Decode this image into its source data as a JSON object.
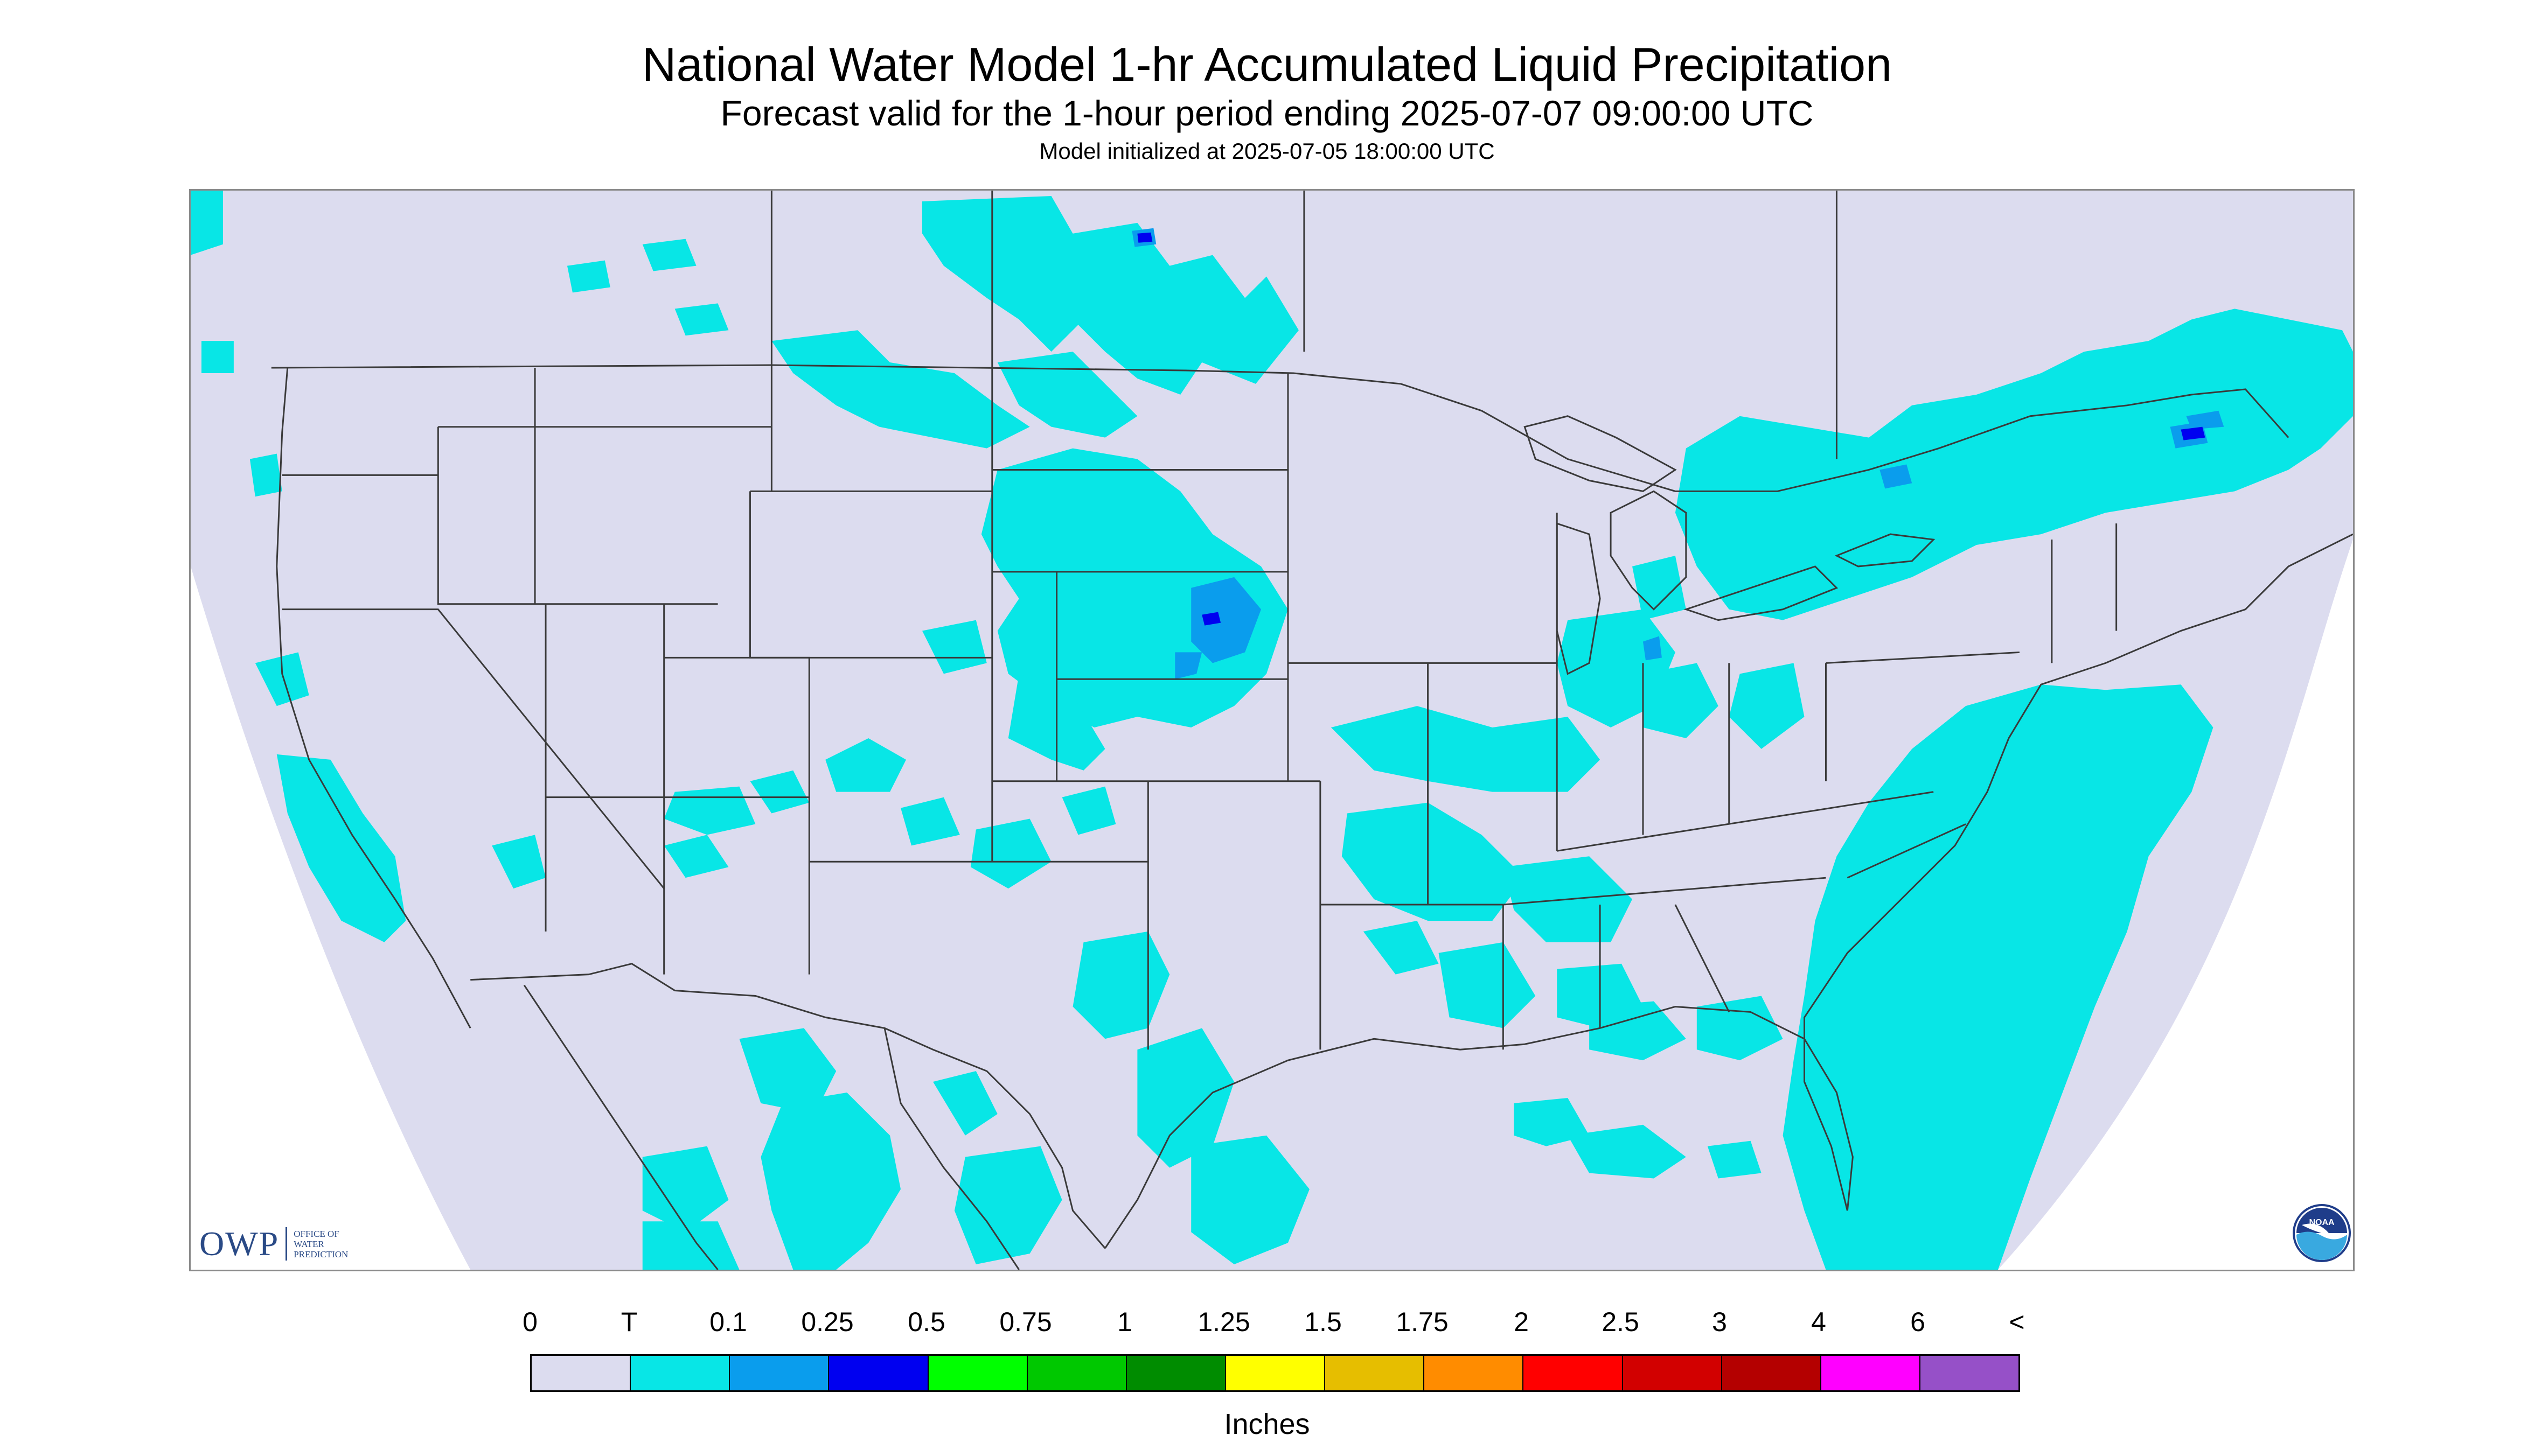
{
  "header": {
    "title": "National Water Model 1-hr Accumulated Liquid Precipitation",
    "subtitle": "Forecast valid for the 1-hour period ending 2025-07-07 09:00:00 UTC",
    "init": "Model initialized at 2025-07-05 18:00:00 UTC"
  },
  "logos": {
    "owp_letters": "OWP",
    "owp_words": [
      "OFFICE OF",
      "WATER",
      "PREDICTION"
    ],
    "noaa": "NOAA"
  },
  "colors": {
    "domain_fill": "#dcdcef",
    "outside_fill": "#ffffff",
    "boundary_line": "#3a3a3a",
    "trace_fill": "#08e6e6",
    "light_blue": "#0a9ded",
    "blue": "#0000f0"
  },
  "legend": {
    "unit": "Inches",
    "ticks": [
      "0",
      "T",
      "0.1",
      "0.25",
      "0.5",
      "0.75",
      "1",
      "1.25",
      "1.5",
      "1.75",
      "2",
      "2.5",
      "3",
      "4",
      "6",
      "<"
    ],
    "bins": [
      {
        "from": "0",
        "to": "T",
        "color": "#dcdcef"
      },
      {
        "from": "T",
        "to": "0.1",
        "color": "#08e6e6"
      },
      {
        "from": "0.1",
        "to": "0.25",
        "color": "#0a9ded"
      },
      {
        "from": "0.25",
        "to": "0.5",
        "color": "#0000f0"
      },
      {
        "from": "0.5",
        "to": "0.75",
        "color": "#00ff00"
      },
      {
        "from": "0.75",
        "to": "1",
        "color": "#00c800"
      },
      {
        "from": "1",
        "to": "1.25",
        "color": "#008c00"
      },
      {
        "from": "1.25",
        "to": "1.5",
        "color": "#ffff00"
      },
      {
        "from": "1.5",
        "to": "1.75",
        "color": "#e6be00"
      },
      {
        "from": "1.75",
        "to": "2",
        "color": "#ff8c00"
      },
      {
        "from": "2",
        "to": "2.5",
        "color": "#ff0000"
      },
      {
        "from": "2.5",
        "to": "3",
        "color": "#d20000"
      },
      {
        "from": "3",
        "to": "4",
        "color": "#b40000"
      },
      {
        "from": "4",
        "to": "6",
        "color": "#ff00ff"
      },
      {
        "from": "6",
        "to": "<",
        "color": "#9650c8"
      }
    ]
  }
}
